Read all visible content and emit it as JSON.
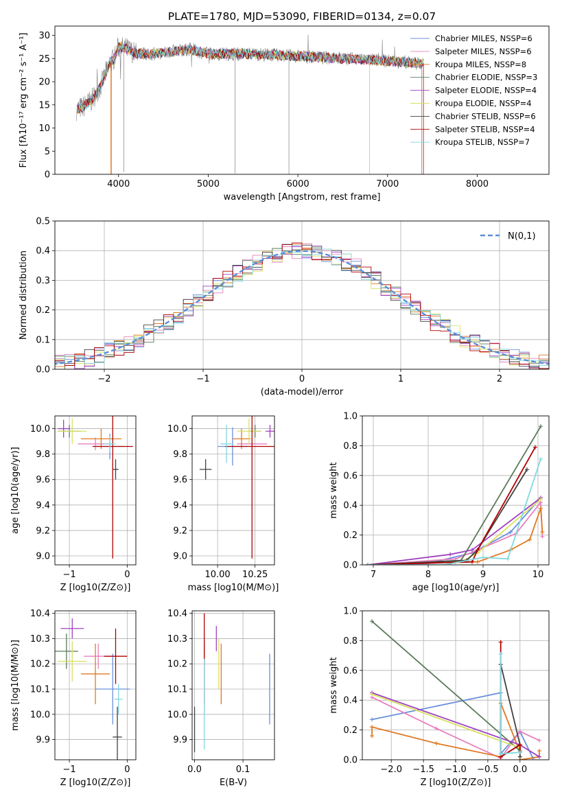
{
  "chart_data": [
    {
      "id": "spectrum",
      "type": "line",
      "title": "PLATE=1780, MJD=53090, FIBERID=0134, z=0.07",
      "xlabel": "wavelength [Angstrom, rest frame]",
      "ylabel": "Flux [fλ10⁻¹⁷ erg cm⁻² s⁻¹ A⁻¹]",
      "xlim": [
        3290,
        8800
      ],
      "ylim": [
        0,
        32
      ],
      "xticks": [
        4000,
        5000,
        6000,
        7000,
        8000
      ],
      "yticks": [
        0,
        5,
        10,
        15,
        20,
        25,
        30
      ],
      "grid": false,
      "legend_position": "top-right",
      "series": [
        {
          "name": "Chabrier MILES, N_SSP=6",
          "color": "#6a8fdc"
        },
        {
          "name": "Salpeter MILES, N_SSP=6",
          "color": "#e77fbf"
        },
        {
          "name": "Kroupa MILES, N_SSP=8",
          "color": "#e07820"
        },
        {
          "name": "Chabrier ELODIE, N_SSP=3",
          "color": "#5a7a5a"
        },
        {
          "name": "Salpeter ELODIE, N_SSP=4",
          "color": "#a040c0"
        },
        {
          "name": "Kroupa ELODIE, N_SSP=4",
          "color": "#d8e060"
        },
        {
          "name": "Chabrier STELIB, N_SSP=6",
          "color": "#404040"
        },
        {
          "name": "Salpeter STELIB, N_SSP=4",
          "color": "#b00000"
        },
        {
          "name": "Kroupa STELIB, N_SSP=7",
          "color": "#80d8e0"
        }
      ],
      "data_color": "#808080",
      "continuum": {
        "x": [
          3530,
          3600,
          3700,
          3800,
          3900,
          3950,
          4000,
          4100,
          4200,
          4400,
          4600,
          4800,
          5000,
          5200,
          5500,
          6000,
          6500,
          7000,
          7300,
          7500
        ],
        "y": [
          14,
          14.5,
          16,
          19,
          24,
          25,
          27.5,
          27,
          26,
          26,
          26.5,
          27,
          26,
          26,
          26,
          25.5,
          25,
          24.5,
          24,
          24
        ]
      }
    },
    {
      "id": "residuals",
      "type": "histogram",
      "xlabel": "(data-model)/error",
      "ylabel": "Normed distribution",
      "xlim": [
        -2.5,
        2.5
      ],
      "ylim": [
        0,
        0.5
      ],
      "xticks": [
        -2,
        -1,
        0,
        1,
        2
      ],
      "yticks": [
        0.0,
        0.1,
        0.2,
        0.3,
        0.4,
        0.5
      ],
      "grid": true,
      "legend_position": "top-right",
      "legend_label": "N(0,1)",
      "reference_curve": {
        "type": "gaussian",
        "mean": 0,
        "sigma": 1,
        "color": "#5b8ed8"
      },
      "bin_width": 0.1
    },
    {
      "id": "age_vs_Z",
      "type": "errorbar",
      "xlabel": "Z [log10(Z/Z⊙)]",
      "ylabel": "age  [log10(age/yr)]",
      "xlim": [
        -1.25,
        0.15
      ],
      "ylim": [
        8.93,
        10.1
      ],
      "xticks": [
        -1,
        0
      ],
      "yticks": [
        9.0,
        9.2,
        9.4,
        9.6,
        9.8,
        10.0
      ],
      "grid": true,
      "points": [
        {
          "x": -0.3,
          "y": 9.86,
          "xerr": 0.25,
          "yerr": 0.1,
          "color": "#6a8fdc"
        },
        {
          "x": -0.55,
          "y": 9.88,
          "xerr": 0.3,
          "yerr": 0.05,
          "color": "#e77fbf"
        },
        {
          "x": -0.45,
          "y": 9.92,
          "xerr": 0.35,
          "yerr": 0.08,
          "color": "#e07820"
        },
        {
          "x": -1.0,
          "y": 9.98,
          "xerr": 0.2,
          "yerr": 0.05,
          "color": "#5a7a5a"
        },
        {
          "x": -1.1,
          "y": 10.0,
          "xerr": 0.1,
          "yerr": 0.07,
          "color": "#a040c0"
        },
        {
          "x": -0.95,
          "y": 9.98,
          "xerr": 0.25,
          "yerr": 0.1,
          "color": "#d8e060"
        },
        {
          "x": -0.2,
          "y": 9.68,
          "xerr": 0.05,
          "yerr": 0.08,
          "color": "#404040"
        },
        {
          "x": -0.25,
          "y": 9.86,
          "xerr": 0.35,
          "yerr": 0.88,
          "color": "#b00000"
        },
        {
          "x": -0.3,
          "y": 9.88,
          "xerr": 0.1,
          "yerr": 0.06,
          "color": "#80d8e0"
        }
      ]
    },
    {
      "id": "age_vs_mass",
      "type": "errorbar",
      "xlabel": "mass [log10(M/M⊙)]",
      "ylabel": "",
      "xlim": [
        9.83,
        10.38
      ],
      "ylim": [
        8.93,
        10.1
      ],
      "xticks": [
        10.0,
        10.25
      ],
      "yticks": [
        9.0,
        9.2,
        9.4,
        9.6,
        9.8,
        10.0
      ],
      "grid": true,
      "points": [
        {
          "x": 10.1,
          "y": 9.86,
          "xerr": 0.1,
          "yerr": 0.15,
          "color": "#6a8fdc"
        },
        {
          "x": 10.23,
          "y": 9.88,
          "xerr": 0.1,
          "yerr": 0.05,
          "color": "#e77fbf"
        },
        {
          "x": 10.16,
          "y": 9.92,
          "xerr": 0.06,
          "yerr": 0.08,
          "color": "#e07820"
        },
        {
          "x": 10.25,
          "y": 9.98,
          "xerr": 0.04,
          "yerr": 0.05,
          "color": "#5a7a5a"
        },
        {
          "x": 10.35,
          "y": 9.98,
          "xerr": 0.03,
          "yerr": 0.05,
          "color": "#a040c0"
        },
        {
          "x": 10.21,
          "y": 9.98,
          "xerr": 0.08,
          "yerr": 0.1,
          "color": "#d8e060"
        },
        {
          "x": 9.92,
          "y": 9.68,
          "xerr": 0.04,
          "yerr": 0.08,
          "color": "#404040"
        },
        {
          "x": 10.23,
          "y": 9.86,
          "xerr": 0.18,
          "yerr": 0.88,
          "color": "#b00000"
        },
        {
          "x": 10.06,
          "y": 9.88,
          "xerr": 0.04,
          "yerr": 0.15,
          "color": "#80d8e0"
        }
      ]
    },
    {
      "id": "massweight_vs_age",
      "type": "line",
      "xlabel": "age  [log10(age/yr)]",
      "ylabel": "mass weight",
      "xlim": [
        6.8,
        10.2
      ],
      "ylim": [
        0,
        1
      ],
      "xticks": [
        7,
        8,
        9,
        10
      ],
      "yticks": [
        0.0,
        0.2,
        0.4,
        0.6,
        0.8,
        1.0
      ],
      "grid": true,
      "series": [
        {
          "color": "#6a8fdc",
          "x": [
            6.9,
            8.0,
            8.8,
            9.5,
            10.05
          ],
          "y": [
            0.0,
            0.01,
            0.08,
            0.22,
            0.45
          ]
        },
        {
          "color": "#e77fbf",
          "x": [
            6.9,
            8.5,
            8.9,
            9.6,
            10.05,
            10.08
          ],
          "y": [
            0.0,
            0.04,
            0.1,
            0.21,
            0.42,
            0.19
          ]
        },
        {
          "color": "#e07820",
          "x": [
            6.9,
            8.5,
            8.9,
            9.5,
            9.85,
            10.05,
            10.08
          ],
          "y": [
            0.0,
            0.02,
            0.02,
            0.1,
            0.17,
            0.38,
            0.22
          ]
        },
        {
          "color": "#5a7a5a",
          "x": [
            6.9,
            8.6,
            10.05
          ],
          "y": [
            0.0,
            0.03,
            0.93
          ]
        },
        {
          "color": "#a040c0",
          "x": [
            6.9,
            8.4,
            8.8,
            10.05
          ],
          "y": [
            0.0,
            0.07,
            0.1,
            0.45
          ]
        },
        {
          "color": "#d8e060",
          "x": [
            6.9,
            8.6,
            8.9,
            10.05
          ],
          "y": [
            0.0,
            0.02,
            0.08,
            0.44
          ]
        },
        {
          "color": "#404040",
          "x": [
            6.9,
            8.7,
            8.9,
            9.8
          ],
          "y": [
            0.0,
            0.03,
            0.1,
            0.64
          ]
        },
        {
          "color": "#b00000",
          "x": [
            6.9,
            8.8,
            8.9,
            9.95
          ],
          "y": [
            0.0,
            0.02,
            0.1,
            0.79
          ]
        },
        {
          "color": "#80d8e0",
          "x": [
            6.9,
            8.3,
            9.0,
            9.45,
            10.05
          ],
          "y": [
            0.0,
            0.0,
            0.05,
            0.04,
            0.71
          ]
        }
      ]
    },
    {
      "id": "mass_vs_Z",
      "type": "errorbar",
      "xlabel": "Z [log10(Z/Z⊙)]",
      "ylabel": "mass [log10(M/M⊙)]",
      "xlim": [
        -1.25,
        0.15
      ],
      "ylim": [
        9.82,
        10.41
      ],
      "xticks": [
        -1,
        0
      ],
      "yticks": [
        9.9,
        10.0,
        10.1,
        10.2,
        10.3,
        10.4
      ],
      "grid": true,
      "points": [
        {
          "x": -0.25,
          "y": 10.1,
          "xerr": 0.3,
          "yerr": 0.14,
          "color": "#6a8fdc"
        },
        {
          "x": -0.5,
          "y": 10.23,
          "xerr": 0.25,
          "yerr": 0.05,
          "color": "#e77fbf"
        },
        {
          "x": -0.55,
          "y": 10.16,
          "xerr": 0.25,
          "yerr": 0.12,
          "color": "#e07820"
        },
        {
          "x": -1.05,
          "y": 10.25,
          "xerr": 0.2,
          "yerr": 0.07,
          "color": "#5a7a5a"
        },
        {
          "x": -0.95,
          "y": 10.34,
          "xerr": 0.2,
          "yerr": 0.04,
          "color": "#a040c0"
        },
        {
          "x": -0.95,
          "y": 10.21,
          "xerr": 0.25,
          "yerr": 0.08,
          "color": "#d8e060"
        },
        {
          "x": -0.17,
          "y": 9.91,
          "xerr": 0.08,
          "yerr": 0.12,
          "color": "#404040"
        },
        {
          "x": -0.2,
          "y": 10.23,
          "xerr": 0.2,
          "yerr": 0.11,
          "color": "#b00000"
        },
        {
          "x": -0.15,
          "y": 10.06,
          "xerr": 0.07,
          "yerr": 0.06,
          "color": "#80d8e0"
        }
      ]
    },
    {
      "id": "mass_vs_EBV",
      "type": "errorbar",
      "xlabel": "E(B-V)",
      "ylabel": "",
      "xlim": [
        -0.005,
        0.165
      ],
      "ylim": [
        9.82,
        10.41
      ],
      "xticks": [
        0.0,
        0.1
      ],
      "yticks": [
        9.9,
        10.0,
        10.1,
        10.2,
        10.3,
        10.4
      ],
      "grid": true,
      "points": [
        {
          "x": 0.155,
          "y": 10.1,
          "xerr": 0,
          "yerr": 0.14,
          "color": "#6a8fdc"
        },
        {
          "x": 0.02,
          "y": 10.11,
          "xerr": 0,
          "yerr": 0.11,
          "color": "#e77fbf"
        },
        {
          "x": 0.055,
          "y": 10.16,
          "xerr": 0,
          "yerr": 0.12,
          "color": "#e07820"
        },
        {
          "x": 0.02,
          "y": 10.25,
          "xerr": 0,
          "yerr": 0.04,
          "color": "#5a7a5a"
        },
        {
          "x": 0.045,
          "y": 10.3,
          "xerr": 0,
          "yerr": 0.05,
          "color": "#a040c0"
        },
        {
          "x": 0.05,
          "y": 10.2,
          "xerr": 0,
          "yerr": 0.1,
          "color": "#d8e060"
        },
        {
          "x": 0.0,
          "y": 9.94,
          "xerr": 0,
          "yerr": 0.09,
          "color": "#404040"
        },
        {
          "x": 0.02,
          "y": 10.22,
          "xerr": 0,
          "yerr": 0.18,
          "color": "#b00000"
        },
        {
          "x": 0.02,
          "y": 10.04,
          "xerr": 0,
          "yerr": 0.18,
          "color": "#80d8e0"
        }
      ]
    },
    {
      "id": "massweight_vs_Z",
      "type": "line",
      "xlabel": "Z [log10(Z/Z⊙)]",
      "ylabel": "mass weight",
      "xlim": [
        -2.45,
        0.45
      ],
      "ylim": [
        0,
        1
      ],
      "xticks": [
        -2.0,
        -1.5,
        -1.0,
        -0.5,
        0.0
      ],
      "yticks": [
        0.0,
        0.2,
        0.4,
        0.6,
        0.8,
        1.0
      ],
      "grid": true,
      "series": [
        {
          "color": "#6a8fdc",
          "x": [
            -2.3,
            -0.3,
            -0.3,
            0.0,
            0.2
          ],
          "y": [
            0.27,
            0.45,
            0.04,
            0.19,
            0.01
          ]
        },
        {
          "color": "#e77fbf",
          "x": [
            -2.3,
            -1.3,
            -0.3,
            0.0,
            0.3
          ],
          "y": [
            0.42,
            0.21,
            0.01,
            0.19,
            0.13
          ]
        },
        {
          "color": "#e07820",
          "x": [
            -2.3,
            -2.3,
            -1.3,
            -0.3,
            -0.3,
            0.0,
            0.0,
            0.3,
            0.3
          ],
          "y": [
            0.16,
            0.22,
            0.11,
            0.02,
            0.38,
            0.05,
            0.0,
            0.02,
            0.06
          ]
        },
        {
          "color": "#5a7a5a",
          "x": [
            -2.3,
            0.0
          ],
          "y": [
            0.93,
            0.06
          ]
        },
        {
          "color": "#a040c0",
          "x": [
            -2.3,
            0.0,
            0.3
          ],
          "y": [
            0.45,
            0.1,
            0.02
          ]
        },
        {
          "color": "#d8e060",
          "x": [
            -2.3,
            0.0,
            0.0
          ],
          "y": [
            0.44,
            0.08,
            0.02
          ]
        },
        {
          "color": "#404040",
          "x": [
            -0.3,
            0.0,
            0.0
          ],
          "y": [
            0.64,
            0.1,
            0.02
          ]
        },
        {
          "color": "#b00000",
          "x": [
            -0.3,
            -0.3,
            0.0,
            0.0
          ],
          "y": [
            0.79,
            0.02,
            0.1,
            0.05
          ]
        },
        {
          "color": "#80d8e0",
          "x": [
            -0.3,
            -0.3,
            0.0
          ],
          "y": [
            0.71,
            0.04,
            0.05
          ]
        }
      ]
    }
  ]
}
